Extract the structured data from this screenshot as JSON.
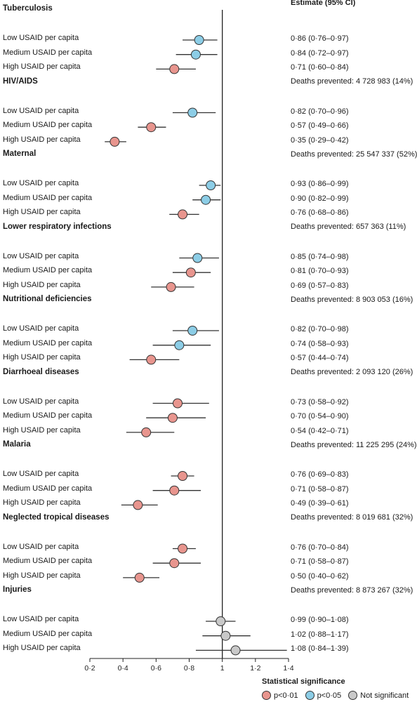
{
  "chart_data": {
    "type": "forest",
    "estimate_header": "Estimate (95% CI)",
    "xlim": [
      0.2,
      1.4
    ],
    "xticks": [
      0.2,
      0.4,
      0.6,
      0.8,
      1.0,
      1.2,
      1.4
    ],
    "xtick_labels": [
      "0·2",
      "0·4",
      "0·6",
      "0·8",
      "1",
      "1·2",
      "1·4"
    ],
    "reference_line": 1.0,
    "colors": {
      "p001": "#e8958e",
      "p005": "#8ccde6",
      "ns": "#c9c9c9"
    },
    "groups": [
      {
        "name": "Tuberculosis",
        "deaths_prevented": "Deaths prevented: 4 728 983 (14%)",
        "rows": [
          {
            "label": "Low USAID per capita",
            "estimate": 0.86,
            "lower": 0.76,
            "upper": 0.97,
            "text": "0·86 (0·76–0·97)",
            "sig": "p005"
          },
          {
            "label": "Medium USAID per capita",
            "estimate": 0.84,
            "lower": 0.72,
            "upper": 0.97,
            "text": "0·84 (0·72–0·97)",
            "sig": "p005"
          },
          {
            "label": "High USAID per capita",
            "estimate": 0.71,
            "lower": 0.6,
            "upper": 0.84,
            "text": "0·71 (0·60–0·84)",
            "sig": "p001"
          }
        ]
      },
      {
        "name": "HIV/AIDS",
        "deaths_prevented": "Deaths prevented: 25 547 337 (52%)",
        "rows": [
          {
            "label": "Low USAID per capita",
            "estimate": 0.82,
            "lower": 0.7,
            "upper": 0.96,
            "text": "0·82 (0·70–0·96)",
            "sig": "p005"
          },
          {
            "label": "Medium USAID per capita",
            "estimate": 0.57,
            "lower": 0.49,
            "upper": 0.66,
            "text": "0·57 (0·49–0·66)",
            "sig": "p001"
          },
          {
            "label": "High USAID per capita",
            "estimate": 0.35,
            "lower": 0.29,
            "upper": 0.42,
            "text": "0·35 (0·29–0·42)",
            "sig": "p001"
          }
        ]
      },
      {
        "name": "Maternal",
        "deaths_prevented": "Deaths prevented: 657 363 (11%)",
        "rows": [
          {
            "label": "Low USAID per capita",
            "estimate": 0.93,
            "lower": 0.86,
            "upper": 0.99,
            "text": "0·93 (0·86–0·99)",
            "sig": "p005"
          },
          {
            "label": "Medium USAID per capita",
            "estimate": 0.9,
            "lower": 0.82,
            "upper": 0.99,
            "text": "0·90 (0·82–0·99)",
            "sig": "p005"
          },
          {
            "label": "High USAID per capita",
            "estimate": 0.76,
            "lower": 0.68,
            "upper": 0.86,
            "text": "0·76 (0·68–0·86)",
            "sig": "p001"
          }
        ]
      },
      {
        "name": "Lower respiratory infections",
        "deaths_prevented": "Deaths prevented: 8 903 053 (16%)",
        "rows": [
          {
            "label": "Low USAID per capita",
            "estimate": 0.85,
            "lower": 0.74,
            "upper": 0.98,
            "text": "0·85 (0·74–0·98)",
            "sig": "p005"
          },
          {
            "label": "Medium USAID per capita",
            "estimate": 0.81,
            "lower": 0.7,
            "upper": 0.93,
            "text": "0·81 (0·70–0·93)",
            "sig": "p001"
          },
          {
            "label": "High USAID per capita",
            "estimate": 0.69,
            "lower": 0.57,
            "upper": 0.83,
            "text": "0·69 (0·57–0·83)",
            "sig": "p001"
          }
        ]
      },
      {
        "name": "Nutritional deficiencies",
        "deaths_prevented": "Deaths prevented: 2 093 120 (26%)",
        "rows": [
          {
            "label": "Low USAID per capita",
            "estimate": 0.82,
            "lower": 0.7,
            "upper": 0.98,
            "text": "0·82 (0·70–0·98)",
            "sig": "p005"
          },
          {
            "label": "Medium USAID per capita",
            "estimate": 0.74,
            "lower": 0.58,
            "upper": 0.93,
            "text": "0·74 (0·58–0·93)",
            "sig": "p005"
          },
          {
            "label": "High USAID per capita",
            "estimate": 0.57,
            "lower": 0.44,
            "upper": 0.74,
            "text": "0·57 (0·44–0·74)",
            "sig": "p001"
          }
        ]
      },
      {
        "name": "Diarrhoeal diseases",
        "deaths_prevented": "Deaths prevented: 11 225 295 (24%)",
        "rows": [
          {
            "label": "Low USAID per capita",
            "estimate": 0.73,
            "lower": 0.58,
            "upper": 0.92,
            "text": "0·73 (0·58–0·92)",
            "sig": "p001"
          },
          {
            "label": "Medium USAID per capita",
            "estimate": 0.7,
            "lower": 0.54,
            "upper": 0.9,
            "text": "0·70 (0·54–0·90)",
            "sig": "p001"
          },
          {
            "label": "High USAID per capita",
            "estimate": 0.54,
            "lower": 0.42,
            "upper": 0.71,
            "text": "0·54 (0·42–0·71)",
            "sig": "p001"
          }
        ]
      },
      {
        "name": "Malaria",
        "deaths_prevented": "Deaths prevented: 8 019 681 (32%)",
        "rows": [
          {
            "label": "Low USAID per capita",
            "estimate": 0.76,
            "lower": 0.69,
            "upper": 0.83,
            "text": "0·76 (0·69–0·83)",
            "sig": "p001"
          },
          {
            "label": "Medium USAID per capita",
            "estimate": 0.71,
            "lower": 0.58,
            "upper": 0.87,
            "text": "0·71 (0·58–0·87)",
            "sig": "p001"
          },
          {
            "label": "High USAID per capita",
            "estimate": 0.49,
            "lower": 0.39,
            "upper": 0.61,
            "text": "0·49 (0·39–0·61)",
            "sig": "p001"
          }
        ]
      },
      {
        "name": "Neglected tropical diseases",
        "deaths_prevented": "Deaths prevented: 8 873 267 (32%)",
        "rows": [
          {
            "label": "Low USAID per capita",
            "estimate": 0.76,
            "lower": 0.7,
            "upper": 0.84,
            "text": "0·76 (0·70–0·84)",
            "sig": "p001"
          },
          {
            "label": "Medium USAID per capita",
            "estimate": 0.71,
            "lower": 0.58,
            "upper": 0.87,
            "text": "0·71 (0·58–0·87)",
            "sig": "p001"
          },
          {
            "label": "High USAID per capita",
            "estimate": 0.5,
            "lower": 0.4,
            "upper": 0.62,
            "text": "0·50 (0·40–0·62)",
            "sig": "p001"
          }
        ]
      },
      {
        "name": "Injuries",
        "deaths_prevented": "",
        "rows": [
          {
            "label": "Low USAID per capita",
            "estimate": 0.99,
            "lower": 0.9,
            "upper": 1.08,
            "text": "0·99 (0·90–1·08)",
            "sig": "ns"
          },
          {
            "label": "Medium USAID per capita",
            "estimate": 1.02,
            "lower": 0.88,
            "upper": 1.17,
            "text": "1·02 (0·88–1·17)",
            "sig": "ns"
          },
          {
            "label": "High USAID per capita",
            "estimate": 1.08,
            "lower": 0.84,
            "upper": 1.39,
            "text": "1·08 (0·84–1·39)",
            "sig": "ns"
          }
        ]
      }
    ],
    "legend": {
      "title": "Statistical significance",
      "items": [
        {
          "key": "p001",
          "label": "p<0·01"
        },
        {
          "key": "p005",
          "label": "p<0·05"
        },
        {
          "key": "ns",
          "label": "Not significant"
        }
      ]
    }
  }
}
